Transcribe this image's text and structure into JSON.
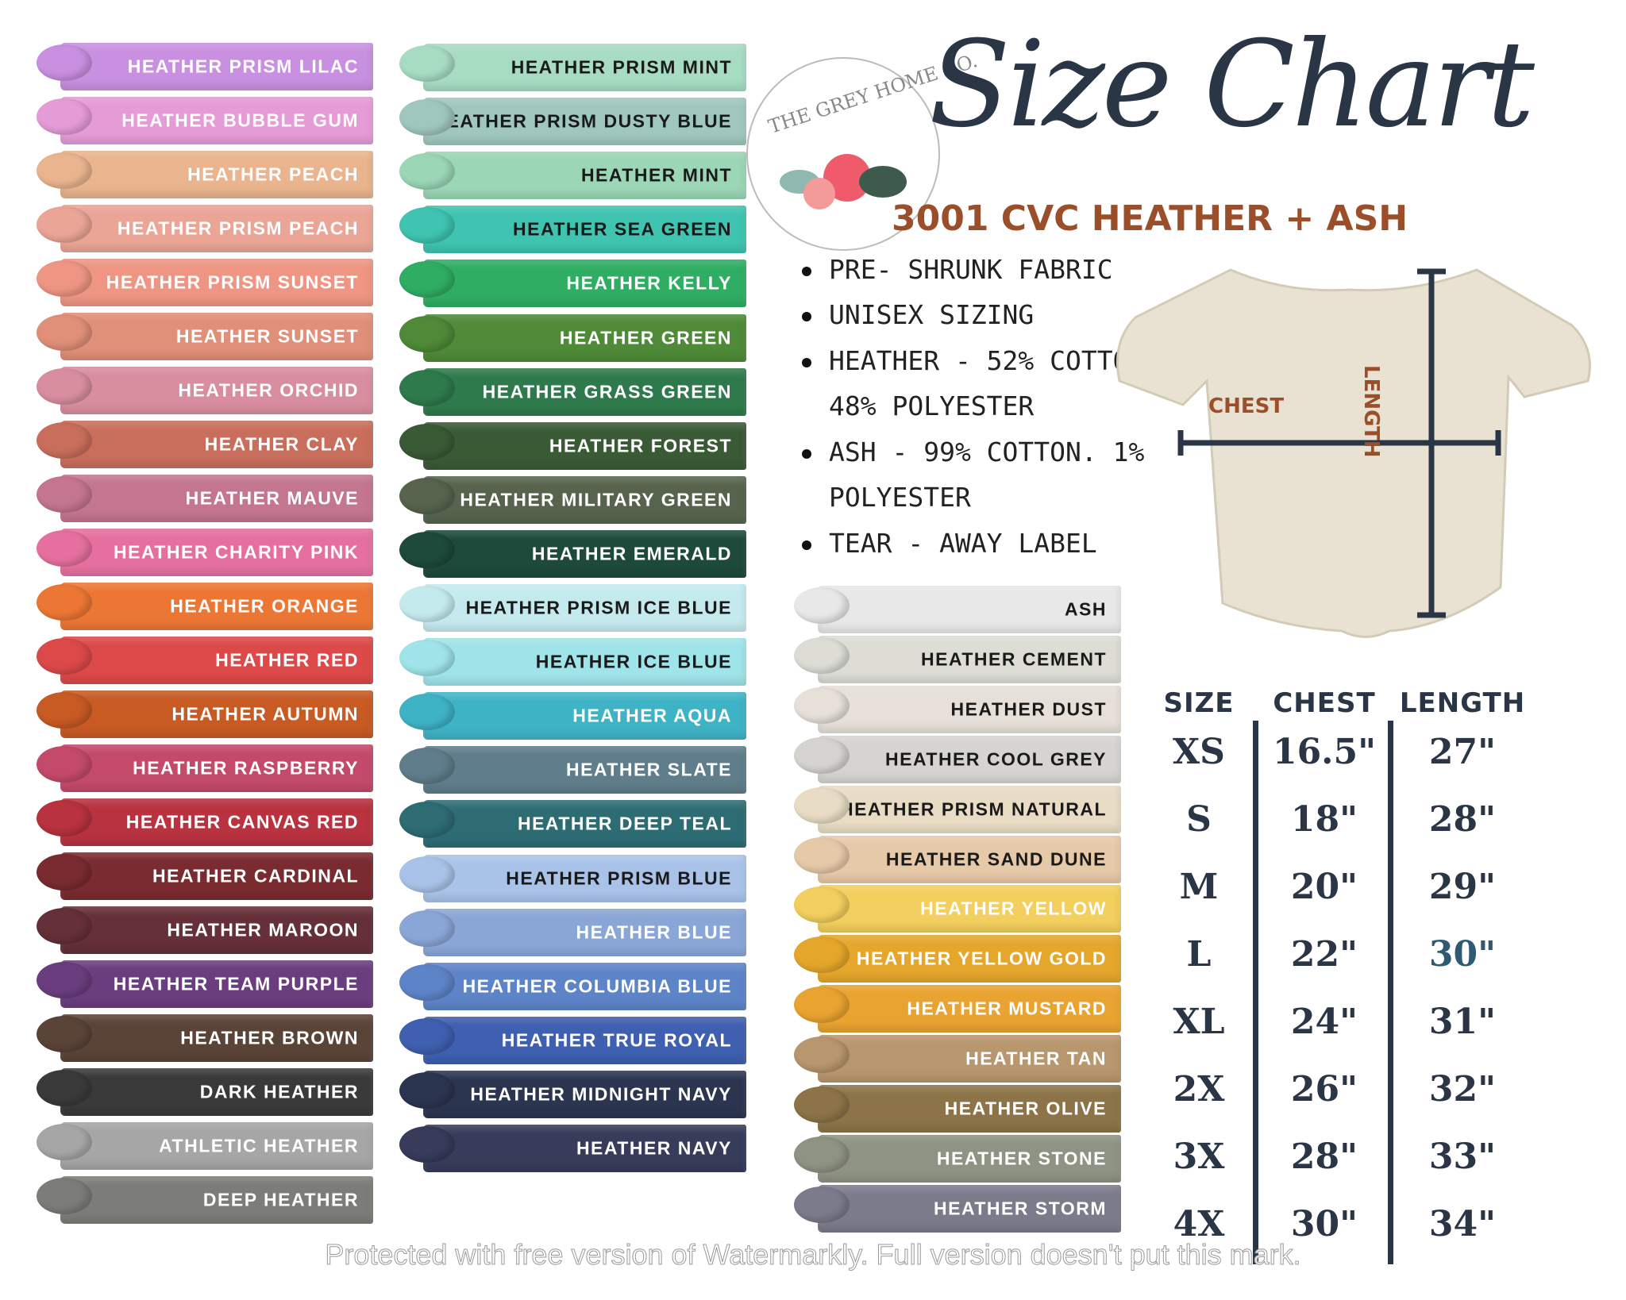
{
  "brand": {
    "logo_text": "THE GREY HOME CO."
  },
  "title": "Size Chart",
  "subtitle": "3001 CVC HEATHER + ASH",
  "features": [
    {
      "text": "PRE- SHRUNK FABRIC",
      "bullet": true
    },
    {
      "text": "UNISEX SIZING",
      "bullet": true
    },
    {
      "text": "HEATHER - 52% COTTON.",
      "bullet": true
    },
    {
      "text": "48% POLYESTER",
      "bullet": false
    },
    {
      "text": "ASH -  99% COTTON. 1%",
      "bullet": true
    },
    {
      "text": "POLYESTER",
      "bullet": false
    },
    {
      "text": "TEAR -  AWAY LABEL",
      "bullet": true
    }
  ],
  "shirt": {
    "chest_label": "CHEST",
    "length_label": "LENGTH",
    "color": "#e9e2d2",
    "measure_color": "#2a3646"
  },
  "size_table": {
    "headers": [
      "SIZE",
      "CHEST",
      "LENGTH"
    ],
    "rows": [
      [
        "XS",
        "16.5\"",
        "27\""
      ],
      [
        "S",
        "18\"",
        "28\""
      ],
      [
        "M",
        "20\"",
        "29\""
      ],
      [
        "L",
        "22\"",
        "30\""
      ],
      [
        "XL",
        "24\"",
        "31\""
      ],
      [
        "2X",
        "26\"",
        "32\""
      ],
      [
        "3X",
        "28\"",
        "33\""
      ],
      [
        "4X",
        "30\"",
        "34\""
      ]
    ]
  },
  "color_columns": [
    [
      {
        "name": "HEATHER PRISM LILAC",
        "color": "#c98fe0",
        "text": "#fff"
      },
      {
        "name": "HEATHER BUBBLE GUM",
        "color": "#e59bd6",
        "text": "#fff"
      },
      {
        "name": "HEATHER PEACH",
        "color": "#e9b48e",
        "text": "#fff"
      },
      {
        "name": "HEATHER PRISM PEACH",
        "color": "#eaa596",
        "text": "#fff"
      },
      {
        "name": "HEATHER PRISM SUNSET",
        "color": "#ee9583",
        "text": "#fff"
      },
      {
        "name": "HEATHER SUNSET",
        "color": "#e08f78",
        "text": "#fff"
      },
      {
        "name": "HEATHER ORCHID",
        "color": "#d88e9e",
        "text": "#fff"
      },
      {
        "name": "HEATHER CLAY",
        "color": "#c96e5c",
        "text": "#fff"
      },
      {
        "name": "HEATHER MAUVE",
        "color": "#c47590",
        "text": "#fff"
      },
      {
        "name": "HEATHER CHARITY PINK",
        "color": "#e5709f",
        "text": "#fff"
      },
      {
        "name": "HEATHER ORANGE",
        "color": "#ec7735",
        "text": "#fff"
      },
      {
        "name": "HEATHER RED",
        "color": "#dc4949",
        "text": "#fff"
      },
      {
        "name": "HEATHER AUTUMN",
        "color": "#c85a24",
        "text": "#fff"
      },
      {
        "name": "HEATHER RASPBERRY",
        "color": "#c44a6a",
        "text": "#fff"
      },
      {
        "name": "HEATHER CANVAS RED",
        "color": "#b83240",
        "text": "#fff"
      },
      {
        "name": "HEATHER CARDINAL",
        "color": "#7a2b30",
        "text": "#fff"
      },
      {
        "name": "HEATHER MAROON",
        "color": "#653038",
        "text": "#fff"
      },
      {
        "name": "HEATHER TEAM PURPLE",
        "color": "#6a3e7e",
        "text": "#fff"
      },
      {
        "name": "HEATHER BROWN",
        "color": "#5a4438",
        "text": "#fff"
      },
      {
        "name": "DARK HEATHER",
        "color": "#3a3a3a",
        "text": "#fff"
      },
      {
        "name": "ATHLETIC HEATHER",
        "color": "#a6a6a6",
        "text": "#fff"
      },
      {
        "name": "DEEP HEATHER",
        "color": "#7c7c78",
        "text": "#fff"
      }
    ],
    [
      {
        "name": "HEATHER PRISM MINT",
        "color": "#a7dcc3",
        "text": "#1a1a1a"
      },
      {
        "name": "HEATHER PRISM DUSTY BLUE",
        "color": "#9fc7bd",
        "text": "#1a1a1a"
      },
      {
        "name": "HEATHER MINT",
        "color": "#9bd6b7",
        "text": "#1a1a1a"
      },
      {
        "name": "HEATHER SEA GREEN",
        "color": "#3ec4b0",
        "text": "#1a1a1a"
      },
      {
        "name": "HEATHER KELLY",
        "color": "#2fae63",
        "text": "#fff"
      },
      {
        "name": "HEATHER GREEN",
        "color": "#4e8a38",
        "text": "#fff"
      },
      {
        "name": "HEATHER GRASS GREEN",
        "color": "#2f7a4c",
        "text": "#fff"
      },
      {
        "name": "HEATHER FOREST",
        "color": "#3a5a36",
        "text": "#fff"
      },
      {
        "name": "HEATHER MILITARY GREEN",
        "color": "#56644e",
        "text": "#fff"
      },
      {
        "name": "HEATHER EMERALD",
        "color": "#1d4a3a",
        "text": "#fff"
      },
      {
        "name": "HEATHER PRISM ICE BLUE",
        "color": "#c5eaee",
        "text": "#1a1a1a"
      },
      {
        "name": "HEATHER ICE BLUE",
        "color": "#9ee4e8",
        "text": "#1a1a1a"
      },
      {
        "name": "HEATHER AQUA",
        "color": "#3fb3c6",
        "text": "#fff"
      },
      {
        "name": "HEATHER SLATE",
        "color": "#5f7d8a",
        "text": "#fff"
      },
      {
        "name": "HEATHER DEEP TEAL",
        "color": "#2e6c73",
        "text": "#fff"
      },
      {
        "name": "HEATHER PRISM BLUE",
        "color": "#a9c3e8",
        "text": "#1a1a1a"
      },
      {
        "name": "HEATHER BLUE",
        "color": "#8aa6d6",
        "text": "#fff"
      },
      {
        "name": "HEATHER COLUMBIA BLUE",
        "color": "#5e84c8",
        "text": "#fff"
      },
      {
        "name": "HEATHER TRUE ROYAL",
        "color": "#3f5fb0",
        "text": "#fff"
      },
      {
        "name": "HEATHER MIDNIGHT NAVY",
        "color": "#2c3550",
        "text": "#fff"
      },
      {
        "name": "HEATHER NAVY",
        "color": "#363c5a",
        "text": "#fff"
      }
    ],
    [
      {
        "name": "ASH",
        "color": "#e8e8e8",
        "text": "#1a1a1a"
      },
      {
        "name": "HEATHER CEMENT",
        "color": "#ddddd6",
        "text": "#1a1a1a"
      },
      {
        "name": "HEATHER DUST",
        "color": "#e6e0d8",
        "text": "#1a1a1a"
      },
      {
        "name": "HEATHER COOL GREY",
        "color": "#d6d4d0",
        "text": "#1a1a1a"
      },
      {
        "name": "HEATHER PRISM NATURAL",
        "color": "#e8dcc4",
        "text": "#1a1a1a"
      },
      {
        "name": "HEATHER SAND DUNE",
        "color": "#e6c9a8",
        "text": "#1a1a1a"
      },
      {
        "name": "HEATHER YELLOW",
        "color": "#f2cf5e",
        "text": "#fff"
      },
      {
        "name": "HEATHER YELLOW GOLD",
        "color": "#e4a72b",
        "text": "#fff"
      },
      {
        "name": "HEATHER MUSTARD",
        "color": "#e9a330",
        "text": "#fff"
      },
      {
        "name": "HEATHER TAN",
        "color": "#b8966e",
        "text": "#fff"
      },
      {
        "name": "HEATHER OLIVE",
        "color": "#8c7448",
        "text": "#fff"
      },
      {
        "name": "HEATHER STONE",
        "color": "#8f9383",
        "text": "#fff"
      },
      {
        "name": "HEATHER STORM",
        "color": "#7b7b8b",
        "text": "#fff"
      }
    ]
  ],
  "colors": {
    "title": "#2a3646",
    "subtitle": "#9a4f2a",
    "length_30": "#2e5a72"
  },
  "watermark": "Protected with free version of Watermarkly. Full version doesn't put this mark."
}
